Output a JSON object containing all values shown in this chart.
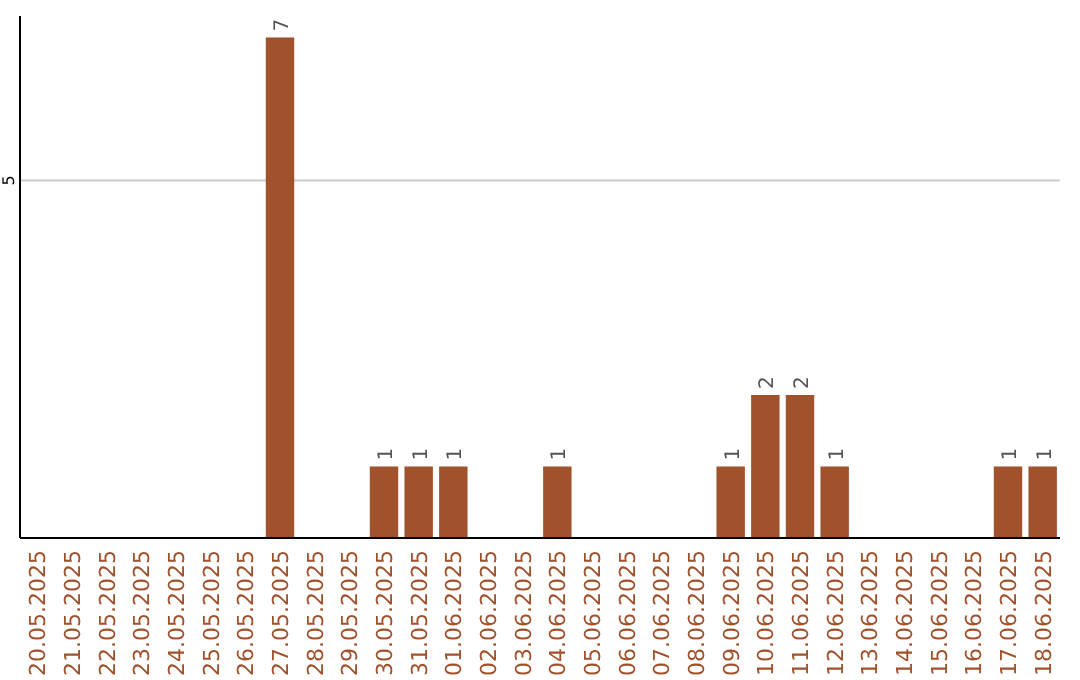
{
  "chart_data": {
    "type": "bar",
    "categories": [
      "20.05.2025",
      "21.05.2025",
      "22.05.2025",
      "23.05.2025",
      "24.05.2025",
      "25.05.2025",
      "26.05.2025",
      "27.05.2025",
      "28.05.2025",
      "29.05.2025",
      "30.05.2025",
      "31.05.2025",
      "01.06.2025",
      "02.06.2025",
      "03.06.2025",
      "04.06.2025",
      "05.06.2025",
      "06.06.2025",
      "07.06.2025",
      "08.06.2025",
      "09.06.2025",
      "10.06.2025",
      "11.06.2025",
      "12.06.2025",
      "13.06.2025",
      "14.06.2025",
      "15.06.2025",
      "16.06.2025",
      "17.06.2025",
      "18.06.2025"
    ],
    "values": [
      0,
      0,
      0,
      0,
      0,
      0,
      0,
      7,
      0,
      0,
      1,
      1,
      1,
      0,
      0,
      1,
      0,
      0,
      0,
      0,
      1,
      2,
      2,
      1,
      0,
      0,
      0,
      0,
      1,
      1
    ],
    "value_labels": [
      null,
      null,
      null,
      null,
      null,
      null,
      null,
      "7",
      null,
      null,
      "1",
      "1",
      "1",
      null,
      null,
      "1",
      null,
      null,
      null,
      null,
      "1",
      "2",
      "2",
      "1",
      null,
      null,
      null,
      null,
      "1",
      "1"
    ],
    "color": "#a0522d",
    "ylim": [
      0,
      7.3
    ],
    "yticks": [
      5
    ],
    "grid": "y"
  }
}
